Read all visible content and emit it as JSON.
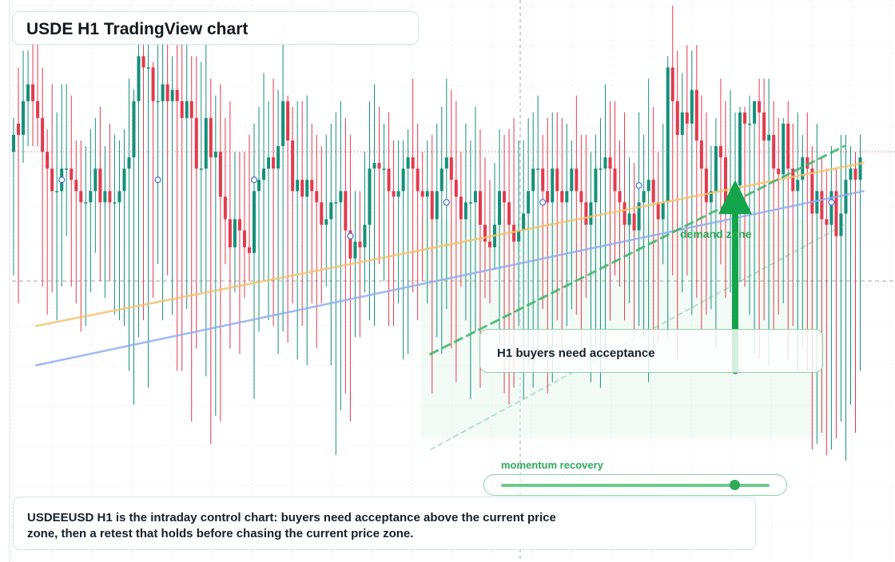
{
  "title": "USDE H1 TradingView chart",
  "note": "USDEEUSD H1 is the intraday control chart: buyers need acceptance above the current price zone, then a retest that holds before chasing the current price zone.",
  "callout": "H1 buyers need acceptance",
  "zone_label": "demand zone",
  "momentum": {
    "label": "momentum recovery",
    "level": 0.87
  },
  "colors": {
    "up": "#15907a",
    "down": "#e23a4e",
    "support": "#f2c26e",
    "trend": "#8eaef0",
    "projection": "#3fb46a",
    "arrow": "#14a44b"
  },
  "chart_data": {
    "type": "candlestick",
    "ylim": [
      0,
      100
    ],
    "reference_levels": [
      73,
      50
    ],
    "demand_zone": [
      22,
      61
    ],
    "series": [
      {
        "values": [
          [
            73,
            76,
            51,
            79
          ],
          [
            78,
            76,
            46,
            88
          ],
          [
            76,
            82,
            71,
            91
          ],
          [
            82,
            85,
            74,
            91
          ],
          [
            85,
            82,
            74,
            94
          ],
          [
            82,
            79,
            74,
            94
          ],
          [
            79,
            73,
            49,
            88
          ],
          [
            73,
            70,
            44,
            77
          ],
          [
            70,
            66,
            48,
            85
          ],
          [
            66,
            66,
            43,
            80
          ],
          [
            66,
            70,
            49,
            85
          ],
          [
            70,
            70,
            58,
            85
          ],
          [
            70,
            68,
            49,
            83
          ],
          [
            68,
            66,
            46,
            75
          ],
          [
            66,
            64,
            41,
            75
          ],
          [
            64,
            64,
            42,
            74
          ],
          [
            64,
            66,
            48,
            77
          ],
          [
            66,
            70,
            55,
            79
          ],
          [
            70,
            64,
            50,
            81
          ],
          [
            64,
            66,
            47,
            74
          ],
          [
            66,
            64,
            50,
            78
          ],
          [
            64,
            64,
            44,
            76
          ],
          [
            64,
            66,
            43,
            75
          ],
          [
            66,
            70,
            42,
            77
          ],
          [
            70,
            72,
            34,
            86
          ],
          [
            72,
            82,
            28,
            84
          ],
          [
            82,
            90,
            40,
            93
          ],
          [
            90,
            88,
            43,
            98
          ],
          [
            88,
            88,
            31,
            94
          ],
          [
            88,
            82,
            47,
            89
          ],
          [
            82,
            82,
            53,
            92
          ],
          [
            82,
            85,
            43,
            94
          ],
          [
            85,
            82,
            51,
            96
          ],
          [
            82,
            84,
            44,
            90
          ],
          [
            84,
            82,
            34,
            92
          ],
          [
            82,
            79,
            34,
            96
          ],
          [
            79,
            82,
            45,
            96
          ],
          [
            82,
            79,
            25,
            90
          ],
          [
            79,
            70,
            38,
            90
          ],
          [
            70,
            70,
            48,
            89
          ],
          [
            70,
            79,
            33,
            93
          ],
          [
            79,
            72,
            21,
            86
          ],
          [
            72,
            73,
            26,
            83
          ],
          [
            73,
            65,
            25,
            85
          ],
          [
            65,
            61,
            53,
            79
          ],
          [
            61,
            56,
            38,
            82
          ],
          [
            56,
            61,
            48,
            73
          ],
          [
            61,
            59,
            37,
            73
          ],
          [
            59,
            56,
            47,
            73
          ],
          [
            56,
            55,
            50,
            76
          ],
          [
            55,
            66,
            29,
            78
          ],
          [
            66,
            68,
            41,
            81
          ],
          [
            68,
            70,
            50,
            87
          ],
          [
            70,
            72,
            43,
            82
          ],
          [
            72,
            70,
            42,
            86
          ],
          [
            70,
            74,
            37,
            84
          ],
          [
            74,
            82,
            41,
            96
          ],
          [
            82,
            75,
            39,
            83
          ],
          [
            75,
            66,
            46,
            81
          ],
          [
            66,
            68,
            36,
            82
          ],
          [
            68,
            65,
            42,
            82
          ],
          [
            65,
            68,
            35,
            83
          ],
          [
            68,
            66,
            46,
            78
          ],
          [
            66,
            64,
            38,
            76
          ],
          [
            64,
            60,
            46,
            74
          ],
          [
            60,
            61,
            49,
            76
          ],
          [
            61,
            64,
            35,
            78
          ],
          [
            64,
            64,
            19,
            80
          ],
          [
            64,
            66,
            27,
            82
          ],
          [
            66,
            59,
            30,
            79
          ],
          [
            59,
            54,
            25,
            76
          ],
          [
            54,
            57,
            40,
            66
          ],
          [
            57,
            56,
            40,
            66
          ],
          [
            56,
            60,
            48,
            73
          ],
          [
            60,
            70,
            43,
            82
          ],
          [
            70,
            71,
            42,
            85
          ],
          [
            71,
            70,
            53,
            81
          ],
          [
            70,
            70,
            50,
            78
          ],
          [
            70,
            66,
            42,
            80
          ],
          [
            66,
            65,
            42,
            75
          ],
          [
            65,
            66,
            46,
            75
          ],
          [
            66,
            70,
            36,
            75
          ],
          [
            70,
            72,
            37,
            77
          ],
          [
            72,
            70,
            48,
            86
          ],
          [
            70,
            66,
            43,
            78
          ],
          [
            66,
            65,
            50,
            73
          ],
          [
            65,
            66,
            46,
            75
          ],
          [
            66,
            61,
            30,
            76
          ],
          [
            61,
            66,
            40,
            78
          ],
          [
            66,
            70,
            37,
            81
          ],
          [
            70,
            72,
            45,
            86
          ],
          [
            72,
            68,
            38,
            84
          ],
          [
            68,
            65,
            32,
            82
          ],
          [
            65,
            61,
            49,
            73
          ],
          [
            61,
            64,
            43,
            78
          ],
          [
            64,
            64,
            29,
            75
          ],
          [
            64,
            66,
            41,
            81
          ],
          [
            66,
            60,
            31,
            77
          ],
          [
            60,
            57,
            47,
            72
          ],
          [
            57,
            56,
            46,
            68
          ],
          [
            56,
            60,
            52,
            71
          ],
          [
            60,
            66,
            38,
            77
          ],
          [
            66,
            64,
            30,
            76
          ],
          [
            64,
            60,
            28,
            77
          ],
          [
            60,
            57,
            31,
            79
          ],
          [
            57,
            59,
            42,
            75
          ],
          [
            59,
            62,
            29,
            75
          ],
          [
            62,
            66,
            35,
            79
          ],
          [
            66,
            70,
            31,
            80
          ],
          [
            70,
            70,
            37,
            83
          ],
          [
            70,
            66,
            45,
            76
          ],
          [
            66,
            64,
            30,
            79
          ],
          [
            64,
            70,
            32,
            80
          ],
          [
            70,
            66,
            43,
            80
          ],
          [
            66,
            64,
            37,
            79
          ],
          [
            64,
            66,
            42,
            78
          ],
          [
            66,
            70,
            45,
            75
          ],
          [
            70,
            66,
            44,
            83
          ],
          [
            66,
            64,
            36,
            76
          ],
          [
            64,
            60,
            47,
            76
          ],
          [
            60,
            64,
            32,
            73
          ],
          [
            64,
            70,
            38,
            76
          ],
          [
            70,
            70,
            31,
            79
          ],
          [
            70,
            72,
            38,
            85
          ],
          [
            72,
            70,
            43,
            82
          ],
          [
            70,
            66,
            51,
            82
          ],
          [
            66,
            64,
            49,
            75
          ],
          [
            64,
            60,
            43,
            80
          ],
          [
            60,
            62,
            46,
            72
          ],
          [
            62,
            59,
            41,
            71
          ],
          [
            59,
            64,
            42,
            80
          ],
          [
            64,
            66,
            40,
            76
          ],
          [
            66,
            68,
            32,
            86
          ],
          [
            68,
            64,
            37,
            81
          ],
          [
            64,
            61,
            39,
            73
          ],
          [
            61,
            64,
            53,
            78
          ],
          [
            64,
            88,
            40,
            90
          ],
          [
            88,
            82,
            51,
            99
          ],
          [
            82,
            76,
            36,
            91
          ],
          [
            76,
            80,
            48,
            87
          ],
          [
            80,
            78,
            51,
            92
          ],
          [
            78,
            84,
            44,
            91
          ],
          [
            84,
            75,
            47,
            92
          ],
          [
            75,
            70,
            41,
            83
          ],
          [
            70,
            64,
            44,
            80
          ],
          [
            64,
            66,
            45,
            74
          ],
          [
            66,
            74,
            38,
            79
          ],
          [
            74,
            72,
            53,
            86
          ],
          [
            72,
            64,
            47,
            82
          ],
          [
            64,
            64,
            48,
            84
          ],
          [
            64,
            67,
            44,
            80
          ],
          [
            67,
            80,
            50,
            81
          ],
          [
            80,
            78,
            49,
            81
          ],
          [
            78,
            78,
            44,
            83
          ],
          [
            78,
            82,
            37,
            82
          ],
          [
            82,
            80,
            36,
            86
          ],
          [
            80,
            75,
            43,
            86
          ],
          [
            75,
            76,
            35,
            86
          ],
          [
            76,
            70,
            41,
            82
          ],
          [
            70,
            69,
            44,
            79
          ],
          [
            69,
            78,
            46,
            79
          ],
          [
            78,
            70,
            36,
            82
          ],
          [
            70,
            66,
            42,
            78
          ],
          [
            66,
            68,
            34,
            80
          ],
          [
            68,
            72,
            38,
            76
          ],
          [
            72,
            70,
            34,
            80
          ],
          [
            70,
            62,
            20,
            74
          ],
          [
            62,
            66,
            21,
            78
          ],
          [
            66,
            61,
            23,
            72
          ],
          [
            61,
            60,
            19,
            70
          ],
          [
            60,
            66,
            20,
            74
          ],
          [
            66,
            58,
            22,
            70
          ],
          [
            58,
            62,
            25,
            76
          ],
          [
            62,
            68,
            18,
            76
          ],
          [
            68,
            70,
            28,
            74
          ],
          [
            70,
            68,
            23,
            73
          ],
          [
            68,
            72,
            34,
            76
          ]
        ]
      }
    ],
    "trendlines": [
      {
        "name": "support",
        "points": [
          [
            5,
            42
          ],
          [
            177,
            71
          ]
        ],
        "style": "solid"
      },
      {
        "name": "trend",
        "points": [
          [
            5,
            35
          ],
          [
            177,
            66
          ]
        ],
        "style": "solid"
      },
      {
        "name": "projection",
        "points": [
          [
            87,
            37
          ],
          [
            173,
            74
          ]
        ],
        "style": "dashed"
      },
      {
        "name": "projection-faint",
        "points": [
          [
            87,
            20
          ],
          [
            173,
            60
          ]
        ],
        "style": "dashed"
      }
    ],
    "markers": [
      [
        10,
        68
      ],
      [
        30,
        68
      ],
      [
        50,
        68
      ],
      [
        70,
        58
      ],
      [
        90,
        64
      ],
      [
        110,
        64
      ],
      [
        130,
        67
      ],
      [
        150,
        66
      ],
      [
        170,
        64
      ]
    ],
    "signal_arrow": {
      "from": [
        150,
        34
      ],
      "to": [
        150,
        68
      ]
    }
  }
}
